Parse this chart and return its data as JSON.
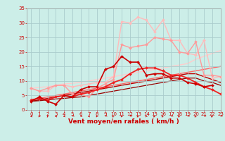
{
  "xlabel": "Vent moyen/en rafales ( km/h )",
  "background_color": "#cceee8",
  "grid_color": "#aacccc",
  "xlim": [
    -0.5,
    23
  ],
  "ylim": [
    0,
    35
  ],
  "yticks": [
    0,
    5,
    10,
    15,
    20,
    25,
    30,
    35
  ],
  "xticks": [
    0,
    1,
    2,
    3,
    4,
    5,
    6,
    7,
    8,
    9,
    10,
    11,
    12,
    13,
    14,
    15,
    16,
    17,
    18,
    19,
    20,
    21,
    22,
    23
  ],
  "lines": [
    {
      "x": [
        0,
        1,
        2,
        3,
        4,
        5,
        6,
        7,
        8,
        9,
        10,
        11,
        12,
        13,
        14,
        15,
        16,
        17,
        18,
        19,
        20,
        21,
        22,
        23
      ],
      "y": [
        7.5,
        6.5,
        6.5,
        8.5,
        8.5,
        8.0,
        8.5,
        9.0,
        9.5,
        9.5,
        11.5,
        30.5,
        30.0,
        32.0,
        31.0,
        27.0,
        31.0,
        24.0,
        24.0,
        19.5,
        19.0,
        24.0,
        11.0,
        11.5
      ],
      "color": "#ffbbbb",
      "lw": 1.0,
      "marker": "D",
      "ms": 2.0,
      "zorder": 2
    },
    {
      "x": [
        0,
        1,
        2,
        3,
        4,
        5,
        6,
        7,
        8,
        9,
        10,
        11,
        12,
        13,
        14,
        15,
        16,
        17,
        18,
        19,
        20,
        21,
        22,
        23
      ],
      "y": [
        7.5,
        6.5,
        7.5,
        8.5,
        8.5,
        5.5,
        5.5,
        4.5,
        7.5,
        9.0,
        10.5,
        22.5,
        21.5,
        22.0,
        22.5,
        25.0,
        24.5,
        24.0,
        20.0,
        19.5,
        23.5,
        12.0,
        12.0,
        11.5
      ],
      "color": "#ff9999",
      "lw": 1.0,
      "marker": "D",
      "ms": 2.0,
      "zorder": 3
    },
    {
      "x": [
        0,
        1,
        2,
        3,
        4,
        5,
        6,
        7,
        8,
        9,
        10,
        11,
        12,
        13,
        14,
        15,
        16,
        17,
        18,
        19,
        20,
        21,
        22,
        23
      ],
      "y": [
        3.0,
        4.5,
        3.0,
        2.0,
        5.0,
        4.5,
        7.0,
        8.0,
        8.0,
        14.0,
        15.0,
        18.5,
        16.5,
        16.5,
        12.0,
        12.5,
        12.5,
        11.0,
        11.0,
        9.5,
        9.0,
        8.0,
        8.5,
        null
      ],
      "color": "#cc0000",
      "lw": 1.2,
      "marker": "D",
      "ms": 2.0,
      "zorder": 6
    },
    {
      "x": [
        0,
        1,
        2,
        3,
        4,
        5,
        6,
        7,
        8,
        9,
        10,
        11,
        12,
        13,
        14,
        15,
        16,
        17,
        18,
        19,
        20,
        21,
        22,
        23
      ],
      "y": [
        3.5,
        4.0,
        3.5,
        4.5,
        5.0,
        4.5,
        5.5,
        6.0,
        7.0,
        8.0,
        9.5,
        10.5,
        12.5,
        14.0,
        14.5,
        14.5,
        13.5,
        12.0,
        12.0,
        11.0,
        9.5,
        8.0,
        7.0,
        5.5
      ],
      "color": "#ee2222",
      "lw": 1.3,
      "marker": "D",
      "ms": 2.0,
      "zorder": 5
    },
    {
      "x": [
        0,
        1,
        2,
        3,
        4,
        5,
        6,
        7,
        8,
        9,
        10,
        11,
        12,
        13,
        14,
        15,
        16,
        17,
        18,
        19,
        20,
        21,
        22,
        23
      ],
      "y": [
        3.5,
        4.0,
        4.5,
        5.0,
        5.5,
        6.0,
        6.5,
        7.0,
        7.5,
        8.0,
        8.5,
        9.0,
        9.5,
        10.0,
        10.5,
        11.0,
        11.5,
        12.0,
        12.5,
        13.0,
        13.5,
        14.0,
        14.5,
        15.0
      ],
      "color": "#ff6666",
      "lw": 1.0,
      "marker": null,
      "ms": 0,
      "zorder": 1
    },
    {
      "x": [
        0,
        1,
        2,
        3,
        4,
        5,
        6,
        7,
        8,
        9,
        10,
        11,
        12,
        13,
        14,
        15,
        16,
        17,
        18,
        19,
        20,
        21,
        22,
        23
      ],
      "y": [
        3.0,
        3.5,
        4.0,
        4.5,
        5.0,
        5.5,
        6.0,
        6.5,
        7.0,
        7.5,
        8.0,
        8.5,
        9.0,
        9.5,
        10.0,
        10.5,
        11.0,
        11.5,
        12.0,
        12.5,
        12.5,
        11.5,
        10.5,
        9.5
      ],
      "color": "#bb0000",
      "lw": 1.0,
      "marker": null,
      "ms": 0,
      "zorder": 1
    },
    {
      "x": [
        0,
        1,
        2,
        3,
        4,
        5,
        6,
        7,
        8,
        9,
        10,
        11,
        12,
        13,
        14,
        15,
        16,
        17,
        18,
        19,
        20,
        21,
        22,
        23
      ],
      "y": [
        3.0,
        3.2,
        3.5,
        3.8,
        4.0,
        4.3,
        4.5,
        5.0,
        5.5,
        6.0,
        6.5,
        7.0,
        7.5,
        8.0,
        8.5,
        9.0,
        9.5,
        10.0,
        10.5,
        11.0,
        11.0,
        10.0,
        9.5,
        8.5
      ],
      "color": "#990000",
      "lw": 0.9,
      "marker": null,
      "ms": 0,
      "zorder": 1
    },
    {
      "x": [
        0,
        1,
        2,
        3,
        4,
        5,
        6,
        7,
        8,
        9,
        10,
        11,
        12,
        13,
        14,
        15,
        16,
        17,
        18,
        19,
        20,
        21,
        22,
        23
      ],
      "y": [
        7.5,
        7.8,
        8.0,
        8.5,
        9.0,
        9.2,
        9.5,
        10.0,
        10.5,
        11.0,
        11.5,
        12.0,
        12.5,
        13.0,
        13.5,
        14.0,
        14.5,
        15.0,
        15.5,
        16.0,
        17.5,
        18.5,
        19.5,
        20.5
      ],
      "color": "#ffcccc",
      "lw": 1.0,
      "marker": null,
      "ms": 0,
      "zorder": 1
    }
  ],
  "tick_color": "#cc0000",
  "label_color": "#cc0000",
  "tick_fontsize": 5.0,
  "xlabel_fontsize": 6.5
}
